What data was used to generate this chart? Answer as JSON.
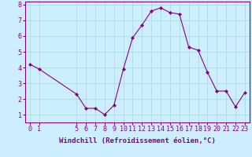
{
  "x": [
    0,
    1,
    5,
    6,
    7,
    8,
    9,
    10,
    11,
    12,
    13,
    14,
    15,
    16,
    17,
    18,
    19,
    20,
    21,
    22,
    23
  ],
  "y": [
    4.2,
    3.9,
    2.3,
    1.4,
    1.4,
    1.0,
    1.6,
    3.9,
    5.9,
    6.7,
    7.6,
    7.8,
    7.5,
    7.4,
    5.3,
    5.1,
    3.7,
    2.5,
    2.5,
    1.5,
    2.4
  ],
  "line_color": "#880088",
  "marker": "D",
  "marker_size": 2,
  "bg_color": "#cceeff",
  "grid_color": "#aadddd",
  "xlabel": "Windchill (Refroidissement éolien,°C)",
  "xlabel_fontsize": 6.5,
  "tick_fontsize": 6,
  "xlim": [
    -0.5,
    23.5
  ],
  "ylim": [
    0.5,
    8.2
  ],
  "yticks": [
    1,
    2,
    3,
    4,
    5,
    6,
    7,
    8
  ],
  "xticks": [
    0,
    1,
    5,
    6,
    7,
    8,
    9,
    10,
    11,
    12,
    13,
    14,
    15,
    16,
    17,
    18,
    19,
    20,
    21,
    22,
    23
  ]
}
